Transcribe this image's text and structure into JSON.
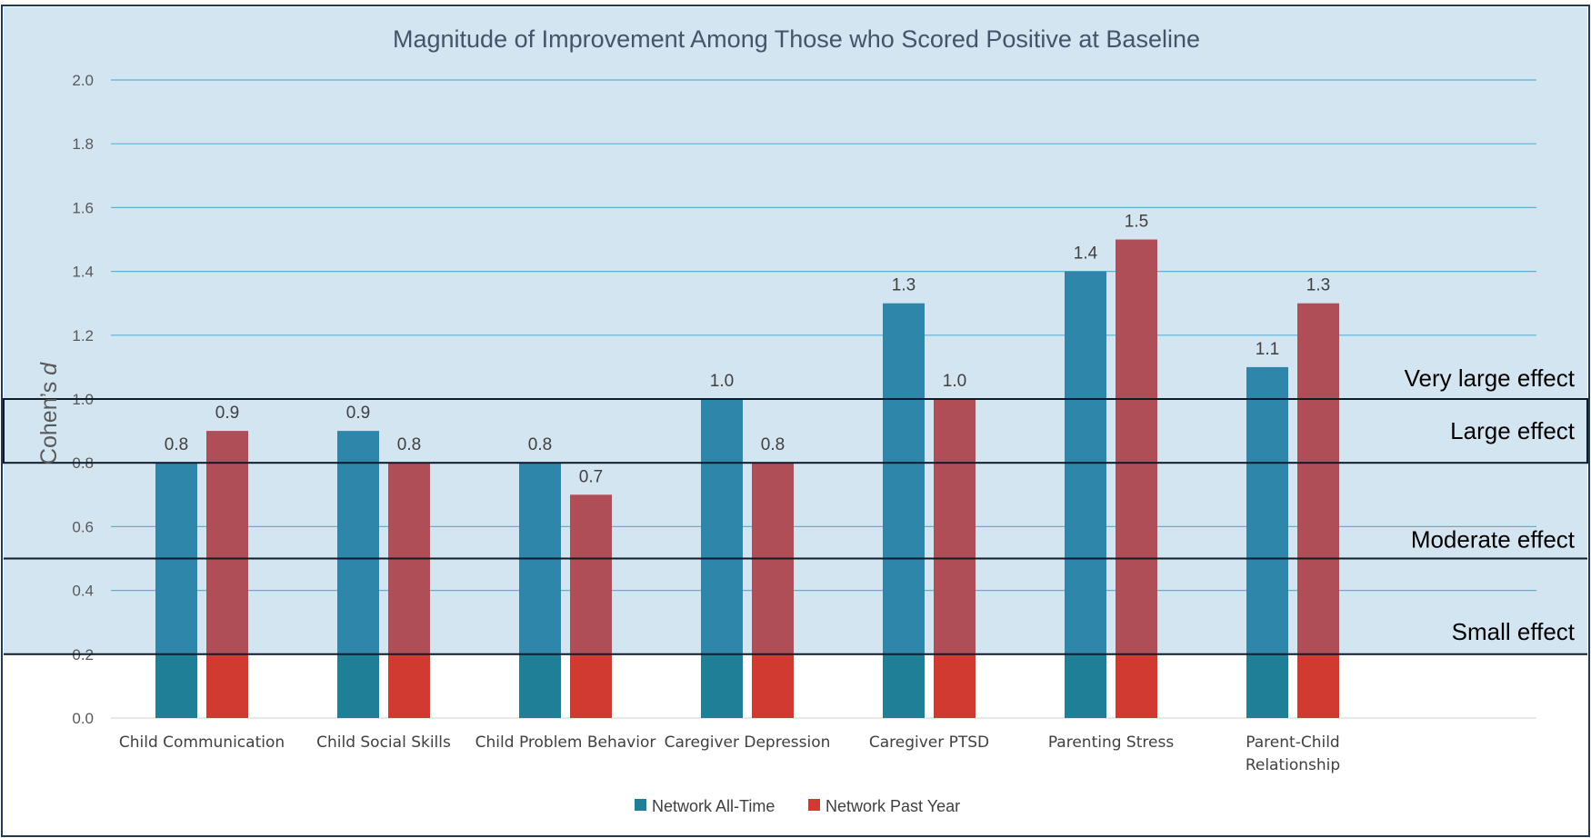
{
  "chart_data": {
    "type": "bar",
    "title": "Magnitude of Improvement Among Those who Scored Positive at Baseline",
    "ylabel": "Cohen’s d",
    "xlabel": "",
    "ylim": [
      0,
      2.0
    ],
    "yticks": [
      "0.0",
      "0.2",
      "0.4",
      "0.6",
      "0.8",
      "1.0",
      "1.2",
      "1.4",
      "1.6",
      "1.8",
      "2.0"
    ],
    "grid": true,
    "legend_position": "bottom",
    "categories": [
      [
        "Child Communication"
      ],
      [
        "Child Social Skills"
      ],
      [
        "Child Problem Behavior"
      ],
      [
        "Caregiver Depression"
      ],
      [
        "Caregiver PTSD"
      ],
      [
        "Parenting Stress"
      ],
      [
        "Parent-Child",
        "Relationship"
      ]
    ],
    "series": [
      {
        "name": "Network All-Time",
        "color": "#2e86ab",
        "color_lower": "#1f7f96",
        "values": [
          0.8,
          0.9,
          0.8,
          1.0,
          1.3,
          1.4,
          1.1
        ],
        "labels": [
          "0.8",
          "0.9",
          "0.8",
          "1.0",
          "1.3",
          "1.4",
          "1.1"
        ]
      },
      {
        "name": "Network Past Year",
        "color": "#b04e57",
        "color_lower": "#d03a31",
        "values": [
          0.9,
          0.8,
          0.7,
          0.8,
          1.0,
          1.5,
          1.3
        ],
        "labels": [
          "0.9",
          "0.8",
          "0.7",
          "0.8",
          "1.0",
          "1.5",
          "1.3"
        ]
      }
    ],
    "effect_bands": [
      {
        "label": "Very large effect",
        "from": 1.0,
        "to": 2.0
      },
      {
        "label": "Large effect",
        "from": 0.8,
        "to": 1.0
      },
      {
        "label": "Moderate effect",
        "from": 0.5,
        "to": 0.8
      },
      {
        "label": "Small effect",
        "from": 0.2,
        "to": 0.5
      }
    ],
    "shade_threshold": 0.2,
    "shade_color": "#d4e5f2"
  }
}
